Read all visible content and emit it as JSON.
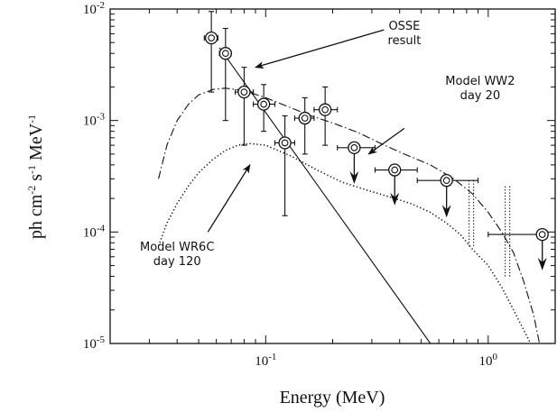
{
  "chart_data": {
    "type": "scatter",
    "xscale": "log",
    "yscale": "log",
    "xlim": [
      0.02,
      2.0
    ],
    "ylim": [
      1e-05,
      0.01
    ],
    "xlabel": "Energy (MeV)",
    "ylabel_base": "ph cm",
    "ylabel_exp1": "-2",
    "ylabel_mid": " s",
    "ylabel_exp2": "-1",
    "ylabel_end": " MeV",
    "ylabel_exp3": "-1",
    "x_ticks": [
      {
        "value": 0.1,
        "base": "10",
        "exp": "-1"
      },
      {
        "value": 1.0,
        "base": "10",
        "exp": "0"
      }
    ],
    "y_ticks": [
      {
        "value": 0.01,
        "base": "10",
        "exp": "-2"
      },
      {
        "value": 0.001,
        "base": "10",
        "exp": "-3"
      },
      {
        "value": 0.0001,
        "base": "10",
        "exp": "-4"
      },
      {
        "value": 1e-05,
        "base": "10",
        "exp": "-5"
      }
    ],
    "data_points": [
      {
        "x": 0.057,
        "y": 0.0055,
        "xerr": [
          0.053,
          0.061
        ],
        "yerr": [
          0.0018,
          0.0095
        ],
        "upper_limit": false
      },
      {
        "x": 0.066,
        "y": 0.004,
        "xerr": [
          0.062,
          0.07
        ],
        "yerr": [
          0.001,
          0.0067
        ],
        "upper_limit": false
      },
      {
        "x": 0.08,
        "y": 0.0018,
        "xerr": [
          0.073,
          0.088
        ],
        "yerr": [
          0.0006,
          0.003
        ],
        "upper_limit": false
      },
      {
        "x": 0.098,
        "y": 0.0014,
        "xerr": [
          0.088,
          0.11
        ],
        "yerr": [
          0.0008,
          0.0021
        ],
        "upper_limit": false
      },
      {
        "x": 0.122,
        "y": 0.00063,
        "xerr": [
          0.11,
          0.135
        ],
        "yerr": [
          0.00014,
          0.0011
        ],
        "upper_limit": false
      },
      {
        "x": 0.15,
        "y": 0.00105,
        "xerr": [
          0.135,
          0.165
        ],
        "yerr": [
          0.0005,
          0.0016
        ],
        "upper_limit": false
      },
      {
        "x": 0.185,
        "y": 0.00125,
        "xerr": [
          0.165,
          0.21
        ],
        "yerr": [
          0.0006,
          0.002
        ],
        "upper_limit": false
      },
      {
        "x": 0.25,
        "y": 0.00057,
        "xerr": [
          0.21,
          0.31
        ],
        "arrow_to": 0.00028,
        "upper_limit": true
      },
      {
        "x": 0.38,
        "y": 0.00036,
        "xerr": [
          0.31,
          0.48
        ],
        "arrow_to": 0.00018,
        "upper_limit": true
      },
      {
        "x": 0.65,
        "y": 0.00029,
        "xerr": [
          0.48,
          0.9
        ],
        "arrow_to": 0.00014,
        "upper_limit": true
      },
      {
        "x": 1.75,
        "y": 9.5e-05,
        "xerr": [
          1.0,
          1.75
        ],
        "arrow_to": 4.7e-05,
        "upper_limit": true
      }
    ],
    "curves": [
      {
        "id": "osse",
        "style": "solid",
        "points": [
          [
            0.062,
            0.0045
          ],
          [
            0.55,
            1e-05
          ]
        ]
      },
      {
        "id": "ww2",
        "style": "dashdot",
        "points": [
          [
            0.033,
            0.0003
          ],
          [
            0.036,
            0.0006
          ],
          [
            0.04,
            0.001
          ],
          [
            0.045,
            0.0014
          ],
          [
            0.05,
            0.0017
          ],
          [
            0.058,
            0.0019
          ],
          [
            0.066,
            0.00195
          ],
          [
            0.08,
            0.00185
          ],
          [
            0.1,
            0.0016
          ],
          [
            0.13,
            0.0013
          ],
          [
            0.16,
            0.0011
          ],
          [
            0.2,
            0.00095
          ],
          [
            0.26,
            0.00078
          ],
          [
            0.33,
            0.00062
          ],
          [
            0.42,
            0.0005
          ],
          [
            0.55,
            0.0004
          ],
          [
            0.7,
            0.0003
          ],
          [
            0.85,
            0.00022
          ],
          [
            1.0,
            0.00015
          ],
          [
            1.15,
            0.0001
          ],
          [
            1.3,
            6.5e-05
          ],
          [
            1.45,
            3.5e-05
          ],
          [
            1.6,
            1.8e-05
          ],
          [
            1.7,
            1e-05
          ]
        ]
      },
      {
        "id": "wr6c",
        "style": "dotted",
        "points": [
          [
            0.033,
            7.5e-05
          ],
          [
            0.036,
            0.00012
          ],
          [
            0.04,
            0.00018
          ],
          [
            0.045,
            0.00026
          ],
          [
            0.05,
            0.00034
          ],
          [
            0.058,
            0.00045
          ],
          [
            0.066,
            0.00054
          ],
          [
            0.075,
            0.0006
          ],
          [
            0.085,
            0.00062
          ],
          [
            0.1,
            0.0006
          ],
          [
            0.13,
            0.00048
          ],
          [
            0.17,
            0.00036
          ],
          [
            0.22,
            0.00028
          ],
          [
            0.28,
            0.00024
          ],
          [
            0.35,
            0.00021
          ],
          [
            0.45,
            0.00018
          ],
          [
            0.55,
            0.00015
          ],
          [
            0.65,
            0.00012
          ],
          [
            0.75,
            9.5e-05
          ],
          [
            0.85,
            7e-05
          ],
          [
            1.0,
            5e-05
          ],
          [
            1.15,
            3.2e-05
          ],
          [
            1.3,
            2e-05
          ],
          [
            1.45,
            1.3e-05
          ],
          [
            1.55,
            1e-05
          ]
        ]
      },
      {
        "id": "line-847",
        "style": "dotted-double",
        "points": [
          [
            0.84,
            7.5e-05
          ],
          [
            0.84,
            0.00029
          ]
        ]
      },
      {
        "id": "line-1238",
        "style": "dotted-double",
        "points": [
          [
            1.22,
            4e-05
          ],
          [
            1.22,
            0.00026
          ]
        ]
      }
    ],
    "annotations": [
      {
        "lines": [
          "OSSE",
          "result"
        ],
        "text_anchor_x": 0.42,
        "text_anchor_y": 0.0065,
        "arrow_from": [
          0.34,
          0.0065
        ],
        "arrow_to": [
          0.09,
          0.003
        ]
      },
      {
        "lines": [
          "Model WW2",
          "day 20"
        ],
        "text_anchor_x": 0.92,
        "text_anchor_y": 0.0021,
        "arrow_from": [
          0.42,
          0.00085
        ],
        "arrow_to": [
          0.29,
          0.0005
        ]
      },
      {
        "lines": [
          "Model WR6C",
          "day 120"
        ],
        "text_anchor_x": 0.04,
        "text_anchor_y": 6.8e-05,
        "arrow_from": [
          0.055,
          0.0001
        ],
        "arrow_to": [
          0.085,
          0.0004
        ]
      }
    ]
  }
}
